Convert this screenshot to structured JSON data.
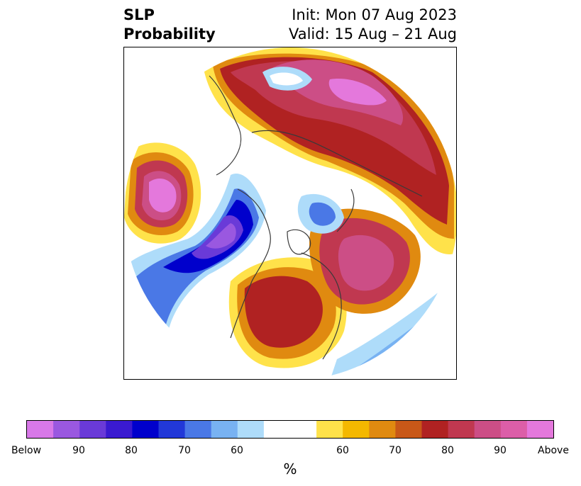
{
  "header": {
    "title_line1": "SLP",
    "title_line2": "Probability",
    "init": "Init: Mon 07 Aug 2023",
    "valid": "Valid: 15 Aug – 21 Aug"
  },
  "colorbar": {
    "colors": [
      "#d878e8",
      "#9a58e0",
      "#6a3ad8",
      "#3a1ad0",
      "#0000cc",
      "#2238d8",
      "#4a78e6",
      "#78b2f2",
      "#aedcfa",
      "#ffffff",
      "#ffe24a",
      "#f4b800",
      "#e08a10",
      "#c85818",
      "#b02222",
      "#c03850",
      "#cc4e86",
      "#dc5ea8",
      "#e478dc"
    ],
    "tick_labels": [
      "Below",
      "90",
      "80",
      "70",
      "60",
      "60",
      "70",
      "80",
      "90",
      "Above"
    ],
    "unit": "%"
  },
  "legend_meaning": {
    "low_end": "Below",
    "high_end": "Above"
  }
}
